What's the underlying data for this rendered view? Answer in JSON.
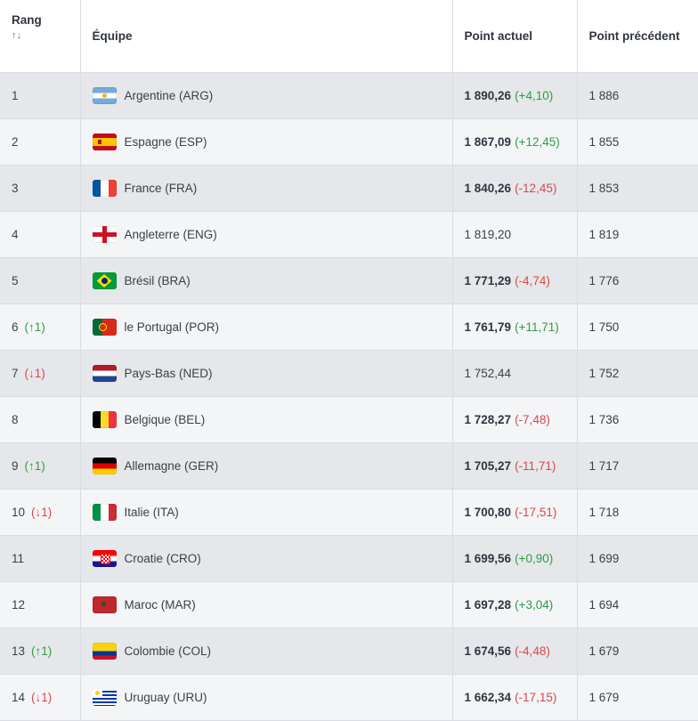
{
  "header": {
    "rank": "Rang",
    "sort_up": "↑",
    "sort_down": "↓",
    "team": "Équipe",
    "current": "Point actuel",
    "previous": "Point précédent"
  },
  "rows": [
    {
      "rank": "1",
      "move": "",
      "dir": "",
      "flag": "arg",
      "flag_icon": "argentina-flag-icon",
      "team": "Argentine (ARG)",
      "points": "1 890,26",
      "delta": "(+4,10)",
      "sign": "pos",
      "prev": "1 886"
    },
    {
      "rank": "2",
      "move": "",
      "dir": "",
      "flag": "esp",
      "flag_icon": "spain-flag-icon",
      "team": "Espagne (ESP)",
      "points": "1 867,09",
      "delta": "(+12,45)",
      "sign": "pos",
      "prev": "1 855"
    },
    {
      "rank": "3",
      "move": "",
      "dir": "",
      "flag": "fra",
      "flag_icon": "france-flag-icon",
      "team": "France (FRA)",
      "points": "1 840,26",
      "delta": "(-12,45)",
      "sign": "neg",
      "prev": "1 853"
    },
    {
      "rank": "4",
      "move": "",
      "dir": "",
      "flag": "eng",
      "flag_icon": "england-flag-icon",
      "team": "Angleterre (ENG)",
      "points": "1 819,20",
      "delta": "",
      "sign": "",
      "plain": true,
      "prev": "1 819"
    },
    {
      "rank": "5",
      "move": "",
      "dir": "",
      "flag": "bra",
      "flag_icon": "brazil-flag-icon",
      "team": "Brésil (BRA)",
      "points": "1 771,29",
      "delta": "(-4,74)",
      "sign": "neg",
      "prev": "1 776"
    },
    {
      "rank": "6",
      "move": "(↑1)",
      "dir": "up",
      "flag": "por",
      "flag_icon": "portugal-flag-icon",
      "team": "le Portugal (POR)",
      "points": "1 761,79",
      "delta": "(+11,71)",
      "sign": "pos",
      "prev": "1 750"
    },
    {
      "rank": "7",
      "move": "(↓1)",
      "dir": "down",
      "flag": "ned",
      "flag_icon": "netherlands-flag-icon",
      "team": "Pays-Bas (NED)",
      "points": "1 752,44",
      "delta": "",
      "sign": "",
      "plain": true,
      "prev": "1 752"
    },
    {
      "rank": "8",
      "move": "",
      "dir": "",
      "flag": "bel",
      "flag_icon": "belgium-flag-icon",
      "team": "Belgique (BEL)",
      "points": "1 728,27",
      "delta": "(-7,48)",
      "sign": "neg",
      "prev": "1 736"
    },
    {
      "rank": "9",
      "move": "(↑1)",
      "dir": "up",
      "flag": "ger",
      "flag_icon": "germany-flag-icon",
      "team": "Allemagne (GER)",
      "points": "1 705,27",
      "delta": "(-11,71)",
      "sign": "neg",
      "prev": "1 717"
    },
    {
      "rank": "10",
      "move": "(↓1)",
      "dir": "down",
      "flag": "ita",
      "flag_icon": "italy-flag-icon",
      "team": "Italie (ITA)",
      "points": "1 700,80",
      "delta": "(-17,51)",
      "sign": "neg",
      "prev": "1 718"
    },
    {
      "rank": "11",
      "move": "",
      "dir": "",
      "flag": "cro",
      "flag_icon": "croatia-flag-icon",
      "team": "Croatie (CRO)",
      "points": "1 699,56",
      "delta": "(+0,90)",
      "sign": "pos",
      "prev": "1 699"
    },
    {
      "rank": "12",
      "move": "",
      "dir": "",
      "flag": "mar",
      "flag_icon": "morocco-flag-icon",
      "team": "Maroc (MAR)",
      "points": "1 697,28",
      "delta": "(+3,04)",
      "sign": "pos",
      "prev": "1 694"
    },
    {
      "rank": "13",
      "move": "(↑1)",
      "dir": "up",
      "flag": "col",
      "flag_icon": "colombia-flag-icon",
      "team": "Colombie (COL)",
      "points": "1 674,56",
      "delta": "(-4,48)",
      "sign": "neg",
      "prev": "1 679"
    },
    {
      "rank": "14",
      "move": "(↓1)",
      "dir": "down",
      "flag": "uru",
      "flag_icon": "uruguay-flag-icon",
      "team": "Uruguay (URU)",
      "points": "1 662,34",
      "delta": "(-17,15)",
      "sign": "neg",
      "prev": "1 679"
    }
  ],
  "colors": {
    "positive": "#2e9c45",
    "negative": "#d8474a",
    "row_odd": "#e5e7ea",
    "row_even": "#f4f5f7"
  }
}
